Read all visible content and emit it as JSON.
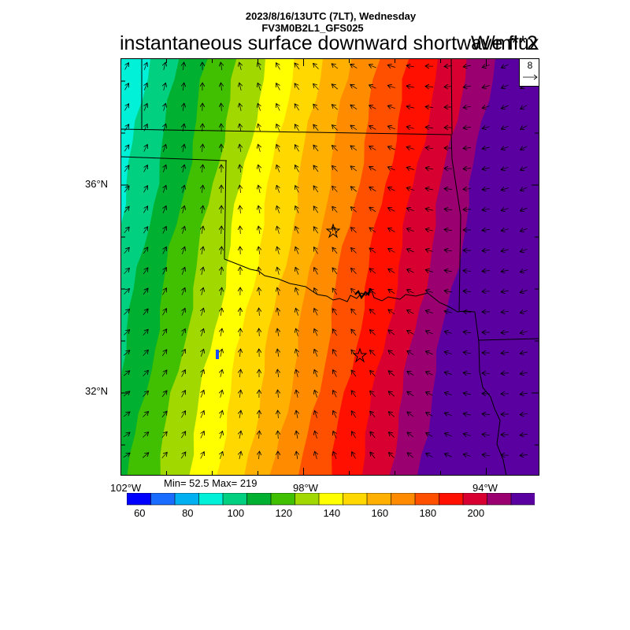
{
  "header": {
    "datetime": "2023/8/16/13UTC (7LT), Wednesday",
    "model": "FV3M0B2L1_GFS025"
  },
  "title": "instantaneous surface downward shortwave flux",
  "units": "W/m**2",
  "vector_reference": {
    "magnitude": "8"
  },
  "axes": {
    "lat_labels": [
      "36°N",
      "32°N"
    ],
    "lon_labels": [
      "102°W",
      "98°W",
      "94°W"
    ]
  },
  "stats": {
    "min_max_text": "Min= 52.5 Max= 219",
    "min": 52.5,
    "max": 219
  },
  "colorbar": {
    "tick_labels": [
      "60",
      "80",
      "100",
      "120",
      "140",
      "160",
      "180",
      "200"
    ],
    "colors": [
      "#0000ff",
      "#1a6cff",
      "#00b0f0",
      "#00f0d8",
      "#00d080",
      "#00b030",
      "#40c000",
      "#a0d800",
      "#ffff00",
      "#ffd800",
      "#ffb000",
      "#ff8c00",
      "#ff5000",
      "#ff1000",
      "#d80030",
      "#9a0070",
      "#5a00a0"
    ]
  },
  "map": {
    "region": "Southern Plains (Oklahoma, Texas)",
    "markers": [
      "star",
      "star"
    ],
    "wind_field": "light flow rotating from southwest on the west side to east/southeast on the east side"
  }
}
